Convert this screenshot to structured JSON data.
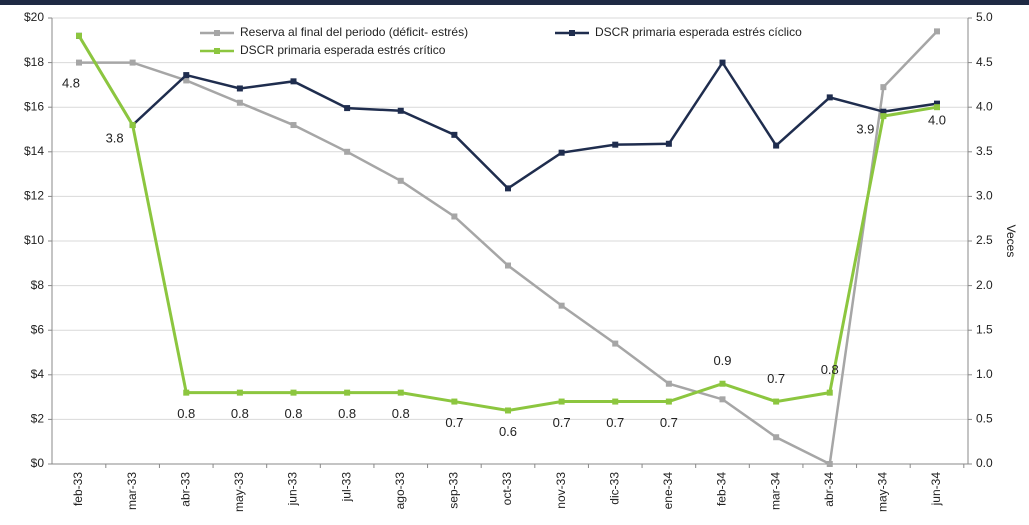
{
  "chart_data": {
    "type": "line",
    "categories": [
      "feb-33",
      "mar-33",
      "abr-33",
      "may-33",
      "jun-33",
      "jul-33",
      "ago-33",
      "sep-33",
      "oct-33",
      "nov-33",
      "dic-33",
      "ene-34",
      "feb-34",
      "mar-34",
      "abr-34",
      "may-34",
      "jun-34"
    ],
    "series": [
      {
        "name": "Reserva al final del periodo (déficit- estrés)",
        "color": "#a6a6a6",
        "axis": "y",
        "values": [
          18.0,
          18.0,
          17.2,
          16.2,
          15.2,
          14.0,
          12.7,
          11.1,
          8.9,
          7.1,
          5.4,
          3.6,
          2.9,
          1.2,
          0,
          16.9,
          19.4
        ]
      },
      {
        "name": "DSCR primaria esperada estrés cíclico",
        "color": "#1f2d4e",
        "axis": "y2",
        "values": [
          4.8,
          3.8,
          4.36,
          4.21,
          4.29,
          3.99,
          3.96,
          3.69,
          3.09,
          3.49,
          3.58,
          3.59,
          4.5,
          3.57,
          4.11,
          3.95,
          4.04
        ]
      },
      {
        "name": "DSCR primaria esperada estrés crítico",
        "color": "#8cc63f",
        "axis": "y2",
        "values": [
          4.8,
          3.8,
          0.8,
          0.8,
          0.8,
          0.8,
          0.8,
          0.7,
          0.6,
          0.7,
          0.7,
          0.7,
          0.9,
          0.7,
          0.8,
          3.9,
          4.0
        ],
        "value_labels": [
          "4.8",
          "3.8",
          "0.8",
          "0.8",
          "0.8",
          "0.8",
          "0.8",
          "0.7",
          "0.6",
          "0.7",
          "0.7",
          "0.7",
          "0.9",
          "0.7",
          "0.8",
          "3.9",
          "4.0"
        ]
      }
    ],
    "ylim": [
      0,
      20
    ],
    "yticks": [
      {
        "value": 0,
        "label": "$0"
      },
      {
        "value": 2,
        "label": "$2"
      },
      {
        "value": 4,
        "label": "$4"
      },
      {
        "value": 6,
        "label": "$6"
      },
      {
        "value": 8,
        "label": "$8"
      },
      {
        "value": 10,
        "label": "$10"
      },
      {
        "value": 12,
        "label": "$12"
      },
      {
        "value": 14,
        "label": "$14"
      },
      {
        "value": 16,
        "label": "$16"
      },
      {
        "value": 18,
        "label": "$18"
      },
      {
        "value": 20,
        "label": "$20"
      }
    ],
    "y2lim": [
      0,
      5
    ],
    "y2ticks": [
      {
        "value": 0,
        "label": "0.0"
      },
      0.5,
      {
        "value": 1,
        "label": "1.0"
      },
      1.5,
      {
        "value": 2,
        "label": "2.0"
      },
      2.5,
      {
        "value": 3,
        "label": "3.0"
      },
      3.5,
      {
        "value": 4,
        "label": "4.0"
      },
      4.5,
      {
        "value": 5,
        "label": "5.0"
      }
    ],
    "y2label": "Veces",
    "grid": true
  }
}
